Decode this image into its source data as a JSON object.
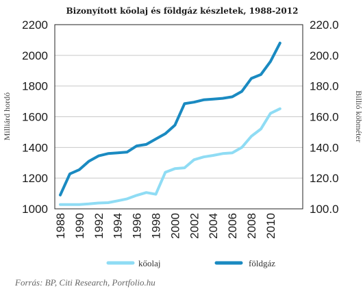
{
  "chart_data": {
    "type": "line",
    "title": "Bizonyított kőolaj és földgáz készletek, 1988-2012",
    "ylabel": "Milliárd hordó",
    "y2label": "Billió köbméter",
    "ylim": [
      1000,
      2200
    ],
    "y2lim": [
      100.0,
      220.0
    ],
    "yticks": [
      "1000",
      "1200",
      "1400",
      "1600",
      "1800",
      "2000",
      "2200"
    ],
    "y2ticks": [
      "100.0",
      "120.0",
      "140.0",
      "160.0",
      "180.0",
      "200.0",
      "220.0"
    ],
    "xticks": [
      "1988",
      "1990",
      "1992",
      "1994",
      "1996",
      "1998",
      "2000",
      "2002",
      "2004",
      "2006",
      "2008",
      "2010"
    ],
    "x": [
      1988,
      1989,
      1990,
      1991,
      1992,
      1993,
      1994,
      1995,
      1996,
      1997,
      1998,
      1999,
      2000,
      2001,
      2002,
      2003,
      2004,
      2005,
      2006,
      2007,
      2008,
      2009,
      2010,
      2011
    ],
    "grid": true,
    "legend_position": "bottom",
    "series": [
      {
        "name": "kőolaj",
        "axis": "left",
        "color": "#8fdcf4",
        "values": [
          1028,
          1028,
          1028,
          1032,
          1038,
          1040,
          1052,
          1065,
          1088,
          1106,
          1095,
          1238,
          1262,
          1267,
          1320,
          1338,
          1348,
          1360,
          1365,
          1400,
          1473,
          1520,
          1622,
          1652
        ]
      },
      {
        "name": "földgáz",
        "axis": "right",
        "color": "#1a8ac1",
        "values": [
          109.0,
          122.8,
          125.5,
          131.0,
          134.5,
          136.0,
          136.5,
          137.0,
          141.0,
          142.0,
          145.5,
          149.0,
          154.5,
          168.5,
          169.5,
          171.0,
          171.5,
          172.0,
          173.0,
          176.5,
          185.0,
          187.5,
          196.0,
          208.0
        ]
      }
    ]
  },
  "source": "Forrás: BP, Citi Research, Portfolio.hu"
}
